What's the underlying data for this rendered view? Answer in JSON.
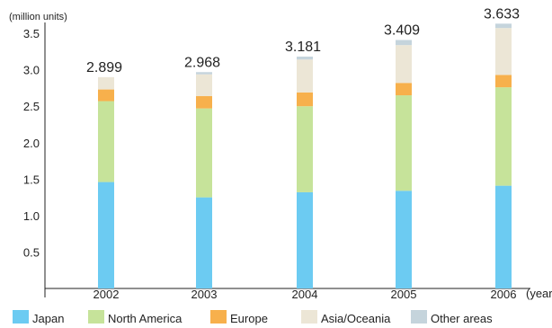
{
  "chart_data": {
    "type": "bar",
    "stacked": true,
    "ylabel": "(million units)",
    "xlabel": "(year)",
    "ylim": [
      0,
      3.6
    ],
    "yticks": [
      "0.5",
      "1.0",
      "1.5",
      "2.0",
      "2.5",
      "3.0",
      "3.5"
    ],
    "categories": [
      "2002",
      "2003",
      "2004",
      "2005",
      "2006"
    ],
    "totals": [
      "2.899",
      "2.968",
      "3.181",
      "3.409",
      "3.633"
    ],
    "series": [
      {
        "name": "Japan",
        "color": "#6ccbf2",
        "values": [
          1.46,
          1.25,
          1.32,
          1.34,
          1.41
        ]
      },
      {
        "name": "North America",
        "color": "#c6e39a",
        "values": [
          1.11,
          1.22,
          1.18,
          1.31,
          1.35
        ]
      },
      {
        "name": "Europe",
        "color": "#f7b04c",
        "values": [
          0.16,
          0.17,
          0.19,
          0.17,
          0.17
        ]
      },
      {
        "name": "Asia/Oceania",
        "color": "#ece6d6",
        "values": [
          0.169,
          0.298,
          0.451,
          0.519,
          0.643
        ]
      },
      {
        "name": "Other areas",
        "color": "#c5d4dc",
        "values": [
          0.0,
          0.03,
          0.04,
          0.07,
          0.06
        ]
      }
    ],
    "grid": false,
    "legend_position": "bottom"
  }
}
